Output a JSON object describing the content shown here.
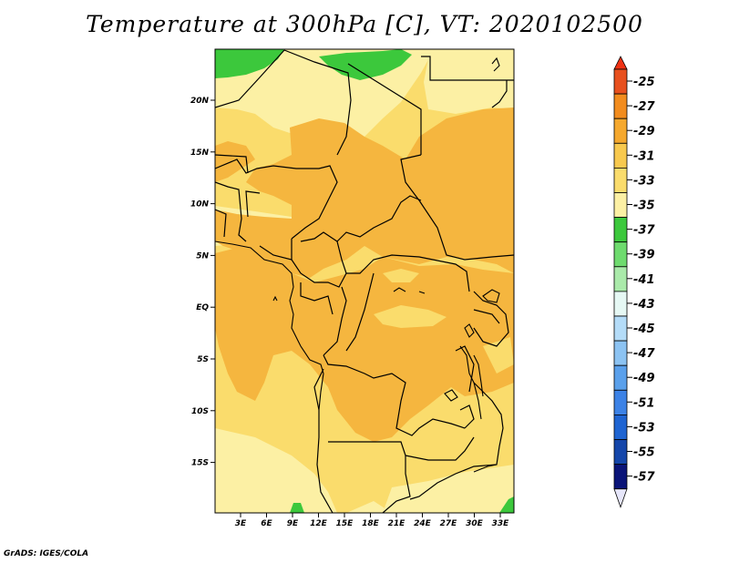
{
  "title": "Temperature at 300hPa [C], VT: 2020102500",
  "footer": "GrADS: IGES/COLA",
  "map": {
    "lat_labels": [
      "20N",
      "15N",
      "10N",
      "5N",
      "EQ",
      "5S",
      "10S",
      "15S"
    ],
    "lon_labels": [
      "3E",
      "6E",
      "9E",
      "12E",
      "15E",
      "18E",
      "21E",
      "24E",
      "27E",
      "30E",
      "33E"
    ],
    "fill_colors": {
      "minus29_minus31": "#F5B63F",
      "minus31_minus33": "#FADC6C",
      "minus33_minus35": "#FCF0A4",
      "minus35_minus37": "#3CC83C"
    }
  },
  "colorbar": {
    "labels": [
      "-25",
      "-27",
      "-29",
      "-31",
      "-33",
      "-35",
      "-37",
      "-39",
      "-41",
      "-43",
      "-45",
      "-47",
      "-49",
      "-51",
      "-53",
      "-55",
      "-57"
    ],
    "colors": [
      "#E8501E",
      "#F28C1E",
      "#F5A82D",
      "#F8C94E",
      "#FADC6C",
      "#FCF0A4",
      "#3CC83C",
      "#6EDB6E",
      "#AAEAAA",
      "#E6F8F4",
      "#B4DCF8",
      "#8CC3F2",
      "#5AA0EB",
      "#3C82E6",
      "#1E64D2",
      "#1446AA",
      "#0A1478"
    ],
    "top_arrow_color": "#F03214",
    "bottom_arrow_color": "#E6E6FA"
  }
}
